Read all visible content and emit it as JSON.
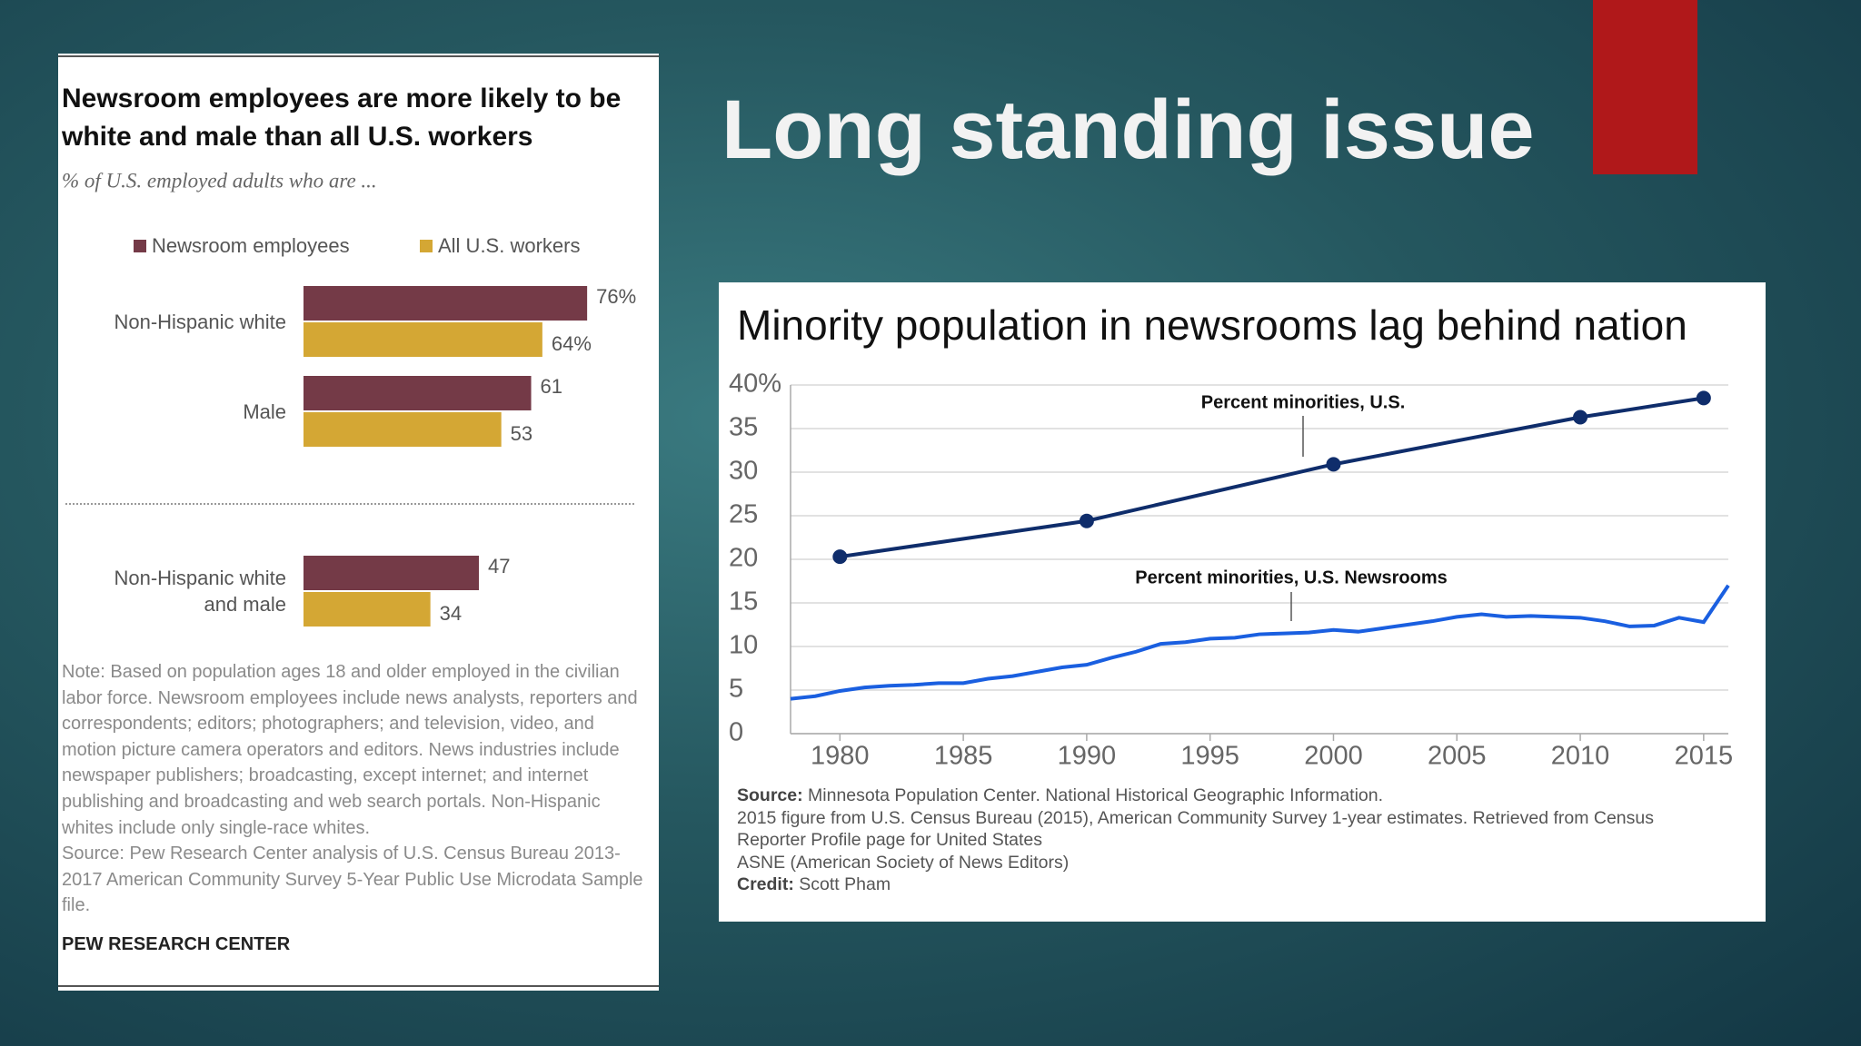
{
  "slide_title": "Long standing issue",
  "chart_data": [
    {
      "type": "hbar",
      "title": "Newsroom employees are more likely to be white and male than all U.S. workers",
      "subtitle": "% of U.S. employed adults who are ...",
      "categories": [
        "Non-Hispanic white",
        "Male",
        "Non-Hispanic white and male"
      ],
      "series": [
        {
          "name": "Newsroom employees",
          "color": "#743a47",
          "values": [
            76,
            61,
            47
          ],
          "value_labels": [
            "76%",
            "61",
            "47"
          ]
        },
        {
          "name": "All U.S. workers",
          "color": "#d4a734",
          "values": [
            64,
            53,
            34
          ],
          "value_labels": [
            "64%",
            "53",
            "34"
          ]
        }
      ],
      "note": "Note: Based on population ages 18 and older employed in the civilian labor force. Newsroom employees include news analysts, reporters and correspondents; editors; photographers; and television, video, and motion picture camera operators and editors. News industries include newspaper publishers; broadcasting, except internet; and internet publishing and broadcasting and web search portals. Non-Hispanic whites include only single-race whites.",
      "source": "Source: Pew Research Center analysis of U.S. Census Bureau 2013-2017 American Community Survey 5-Year Public Use Microdata Sample file.",
      "footer": "PEW RESEARCH CENTER"
    },
    {
      "type": "line",
      "title": "Minority population in newsrooms lag behind nation",
      "xlim": [
        1978,
        2016
      ],
      "xticks": [
        1980,
        1985,
        1990,
        1995,
        2000,
        2005,
        2010,
        2015
      ],
      "ylim": [
        0,
        40
      ],
      "yticks": [
        0,
        5,
        10,
        15,
        20,
        25,
        30,
        35,
        {
          "value": 40,
          "label": "40%"
        }
      ],
      "grid": true,
      "series": [
        {
          "name": "Percent minorities, U.S.",
          "color": "#0f2d6b",
          "markers": true,
          "x": [
            1980,
            1990,
            2000,
            2010,
            2015
          ],
          "values": [
            20.3,
            24.4,
            30.9,
            36.3,
            38.5
          ]
        },
        {
          "name": "Percent minorities, U.S. Newsrooms",
          "color": "#1a5fe0",
          "markers": false,
          "x": [
            1978,
            1979,
            1980,
            1981,
            1982,
            1983,
            1984,
            1985,
            1986,
            1987,
            1988,
            1989,
            1990,
            1991,
            1992,
            1993,
            1994,
            1995,
            1996,
            1997,
            1998,
            1999,
            2000,
            2001,
            2002,
            2003,
            2004,
            2005,
            2006,
            2007,
            2008,
            2009,
            2010,
            2011,
            2012,
            2013,
            2014,
            2015,
            2016
          ],
          "values": [
            4.0,
            4.3,
            4.9,
            5.3,
            5.5,
            5.6,
            5.8,
            5.8,
            6.3,
            6.6,
            7.1,
            7.6,
            7.9,
            8.7,
            9.4,
            10.3,
            10.5,
            10.9,
            11.0,
            11.4,
            11.5,
            11.6,
            11.9,
            11.7,
            12.1,
            12.5,
            12.9,
            13.4,
            13.7,
            13.4,
            13.5,
            13.4,
            13.3,
            12.9,
            12.3,
            12.4,
            13.3,
            12.8,
            17.0
          ]
        }
      ],
      "source": {
        "label": "Source:",
        "lines": [
          "Minnesota Population Center. National Historical Geographic Information.",
          "2015 figure from U.S. Census Bureau (2015), American Community Survey 1-year estimates. Retrieved from Census Reporter Profile page for United States",
          "ASNE (American Society of News Editors)"
        ]
      },
      "credit": {
        "label": "Credit:",
        "text": "Scott Pham"
      }
    }
  ]
}
